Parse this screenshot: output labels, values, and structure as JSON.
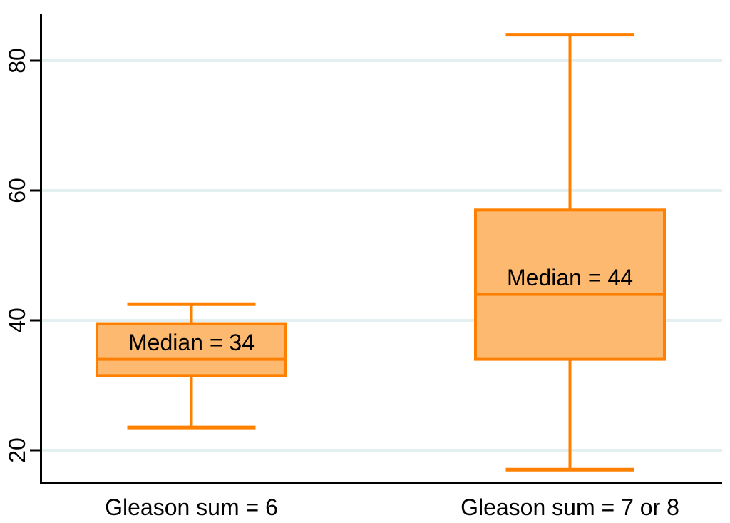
{
  "chart_data": {
    "type": "box",
    "title": "",
    "xlabel": "",
    "ylabel": "",
    "yticks": [
      20,
      40,
      60,
      80
    ],
    "ylim": [
      13,
      87
    ],
    "grid": true,
    "grid_orientation": "horizontal",
    "legend_position": "none",
    "colors": {
      "background": "#ffffff",
      "axis": "#000000",
      "gridline": "#e3eff0",
      "box_fill": "#fcb96f",
      "box_stroke": "#ff8000",
      "label_text": "#000000"
    },
    "categories": [
      "Gleason sum = 6",
      "Gleason sum = 7 or 8"
    ],
    "boxes": [
      {
        "category": "Gleason sum = 6",
        "min": 23.5,
        "q1": 31.5,
        "median": 34,
        "q3": 39.5,
        "max": 42.5,
        "median_label": "Median = 34"
      },
      {
        "category": "Gleason sum = 7 or 8",
        "min": 17,
        "q1": 34,
        "median": 44,
        "q3": 57,
        "max": 84,
        "median_label": "Median = 44"
      }
    ]
  }
}
